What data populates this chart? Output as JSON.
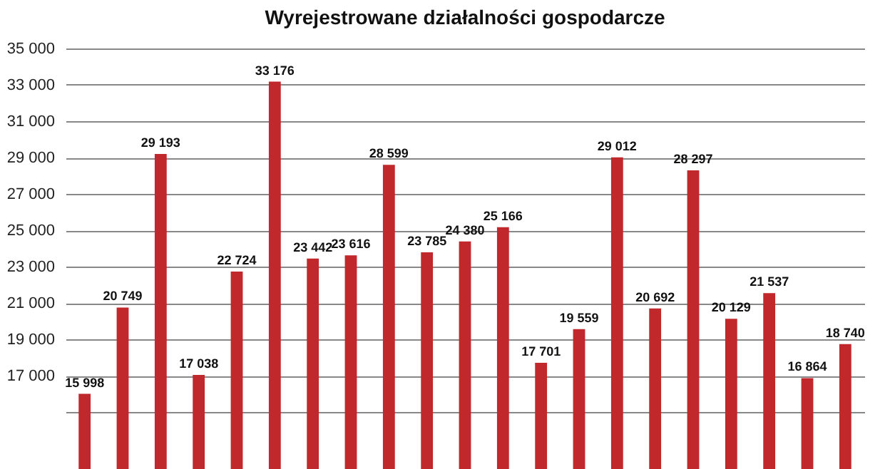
{
  "chart_data": {
    "type": "bar",
    "title": "Wyrejestrowane działalności gospodarcze",
    "categories": [
      null,
      null,
      null,
      null,
      null,
      null,
      null,
      null,
      null,
      null,
      null,
      null,
      null,
      null,
      null,
      null,
      null,
      null,
      null,
      null,
      null
    ],
    "values": [
      15998,
      20749,
      29193,
      17038,
      22724,
      33176,
      23442,
      23616,
      28599,
      23785,
      24380,
      25166,
      17701,
      19559,
      29012,
      20692,
      28297,
      20129,
      21537,
      16864,
      18740
    ],
    "value_labels": [
      "15 998",
      "20 749",
      "29 193",
      "17 038",
      "22 724",
      "33 176",
      "23 442",
      "23 616",
      "28 599",
      "23 785",
      "24 380",
      "25 166",
      "17 701",
      "19 559",
      "29 012",
      "20 692",
      "28 297",
      "20 129",
      "21 537",
      "16 864",
      "18 740"
    ],
    "color": "#c0282c",
    "ylim": [
      15000,
      35000
    ],
    "yticks": [
      {
        "value": 17000,
        "label": "17 000"
      },
      {
        "value": 19000,
        "label": "19 000"
      },
      {
        "value": 21000,
        "label": "21 000"
      },
      {
        "value": 23000,
        "label": "23 000"
      },
      {
        "value": 25000,
        "label": "25 000"
      },
      {
        "value": 27000,
        "label": "27 000"
      },
      {
        "value": 29000,
        "label": "29 000"
      },
      {
        "value": 31000,
        "label": "31 000"
      },
      {
        "value": 33000,
        "label": "33 000"
      },
      {
        "value": 35000,
        "label": "35 000"
      }
    ],
    "grid": "y"
  }
}
